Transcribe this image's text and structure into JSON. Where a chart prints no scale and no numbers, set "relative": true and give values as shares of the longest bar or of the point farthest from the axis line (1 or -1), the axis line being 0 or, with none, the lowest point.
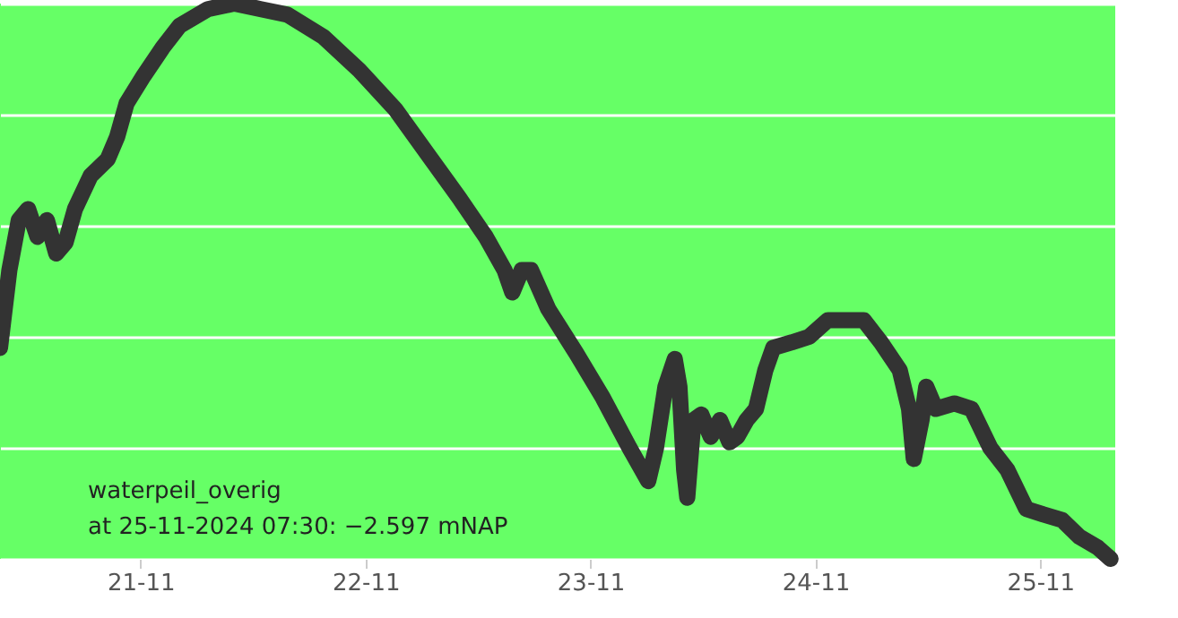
{
  "chart_data": {
    "type": "line",
    "relative": true,
    "grid": "y",
    "line_style": "solid",
    "x": [
      "2024-11-20T09:00",
      "2024-11-20T10:00",
      "2024-11-20T11:00",
      "2024-11-20T12:00",
      "2024-11-20T13:00",
      "2024-11-20T14:00",
      "2024-11-20T15:00",
      "2024-11-20T16:00",
      "2024-11-20T17:00",
      "2024-11-20T18:40",
      "2024-11-20T20:30",
      "2024-11-20T21:30",
      "2024-11-20T22:30",
      "2024-11-21T00:20",
      "2024-11-21T02:20",
      "2024-11-21T04:10",
      "2024-11-21T07:10",
      "2024-11-21T10:00",
      "2024-11-21T12:50",
      "2024-11-21T15:40",
      "2024-11-21T19:30",
      "2024-11-21T23:20",
      "2024-11-22T03:10",
      "2024-11-22T07:00",
      "2024-11-22T10:00",
      "2024-11-22T12:50",
      "2024-11-22T14:50",
      "2024-11-22T15:40",
      "2024-11-22T16:40",
      "2024-11-22T17:40",
      "2024-11-22T19:30",
      "2024-11-22T22:30",
      "2024-11-23T01:20",
      "2024-11-23T04:10",
      "2024-11-23T06:10",
      "2024-11-23T07:00",
      "2024-11-23T08:00",
      "2024-11-23T09:00",
      "2024-11-23T09:30",
      "2024-11-23T10:00",
      "2024-11-23T10:20",
      "2024-11-23T11:00",
      "2024-11-23T11:50",
      "2024-11-23T12:50",
      "2024-11-23T13:50",
      "2024-11-23T14:50",
      "2024-11-23T15:40",
      "2024-11-23T16:40",
      "2024-11-23T17:40",
      "2024-11-23T18:40",
      "2024-11-23T19:30",
      "2024-11-23T21:30",
      "2024-11-23T23:20",
      "2024-11-24T01:20",
      "2024-11-24T03:10",
      "2024-11-24T05:10",
      "2024-11-24T07:00",
      "2024-11-24T09:00",
      "2024-11-24T10:00",
      "2024-11-24T10:30",
      "2024-11-24T11:20",
      "2024-11-24T11:50",
      "2024-11-24T12:50",
      "2024-11-24T14:50",
      "2024-11-24T16:40",
      "2024-11-24T18:40",
      "2024-11-24T20:30",
      "2024-11-24T22:30",
      "2024-11-25T00:20",
      "2024-11-25T02:20",
      "2024-11-25T04:10",
      "2024-11-25T06:10",
      "2024-11-25T07:30"
    ],
    "series": [
      {
        "color": "#333333",
        "values": [
          0.38,
          0.52,
          0.61,
          0.63,
          0.58,
          0.61,
          0.55,
          0.57,
          0.63,
          0.69,
          0.72,
          0.76,
          0.82,
          0.87,
          0.92,
          0.96,
          0.99,
          1.0,
          0.99,
          0.98,
          0.94,
          0.88,
          0.81,
          0.72,
          0.65,
          0.58,
          0.52,
          0.48,
          0.52,
          0.52,
          0.45,
          0.37,
          0.29,
          0.2,
          0.14,
          0.2,
          0.31,
          0.36,
          0.31,
          0.16,
          0.11,
          0.25,
          0.26,
          0.22,
          0.25,
          0.21,
          0.22,
          0.25,
          0.27,
          0.34,
          0.38,
          0.39,
          0.4,
          0.43,
          0.43,
          0.43,
          0.39,
          0.34,
          0.27,
          0.18,
          0.25,
          0.31,
          0.27,
          0.28,
          0.27,
          0.2,
          0.16,
          0.09,
          0.08,
          0.07,
          0.04,
          0.02,
          0.0
        ]
      }
    ],
    "xlim": [
      "2024-11-20T09:00",
      "2024-11-25T08:00"
    ],
    "xticks": [
      {
        "value": "2024-11-21",
        "label": "21-11"
      },
      {
        "value": "2024-11-22",
        "label": "22-11"
      },
      {
        "value": "2024-11-23",
        "label": "23-11"
      },
      {
        "value": "2024-11-24",
        "label": "24-11"
      },
      {
        "value": "2024-11-25",
        "label": "25-11"
      }
    ],
    "annotations": [
      "waterpeil_overig\nat 25-11-2024 07:30: −2.597 mNAP"
    ]
  }
}
